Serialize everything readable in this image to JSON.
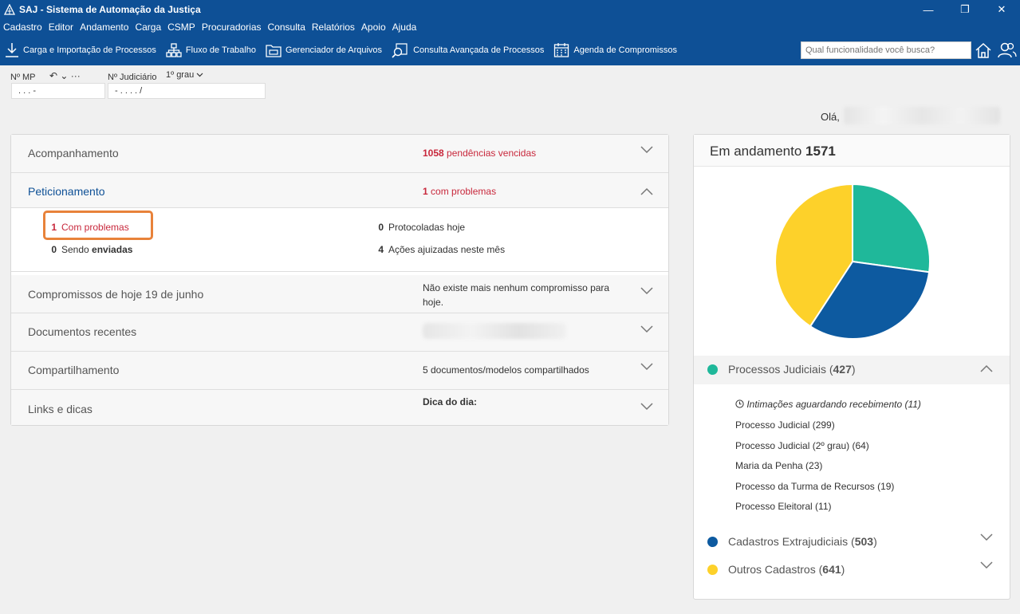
{
  "window": {
    "title": "SAJ - Sistema de Automação da Justiça",
    "controls": [
      "—",
      "❐",
      "✕"
    ]
  },
  "menu": [
    "Cadastro",
    "Editor",
    "Andamento",
    "Carga",
    "CSMP",
    "Procuradorias",
    "Consulta",
    "Relatórios",
    "Apoio",
    "Ajuda"
  ],
  "toolbar": {
    "items": [
      {
        "label": "Carga e Importação de Processos",
        "icon": "download-icon"
      },
      {
        "label": "Fluxo de Trabalho",
        "icon": "workflow-icon"
      },
      {
        "label": "Gerenciador de Arquivos",
        "icon": "file-manager-icon"
      },
      {
        "label": "Consulta Avançada de Processos",
        "icon": "advanced-search-icon"
      },
      {
        "label": "Agenda de Compromissos",
        "icon": "calendar-icon"
      }
    ],
    "search_placeholder": "Qual funcionalidade você busca?"
  },
  "process_search": {
    "mp_label": "Nº MP",
    "mp_controls": "↶ ⌄ ···",
    "mp_value": ". . . -",
    "judiciario_label": "Nº Judiciário",
    "grau_label": "1º grau",
    "judiciario_value": "- . . . . /"
  },
  "greeting": "Olá,",
  "sections": {
    "acompanhamento": {
      "title": "Acompanhamento",
      "count": "1058",
      "info": "pendências vencidas"
    },
    "peticionamento": {
      "title": "Peticionamento",
      "count": "1",
      "info": "com problemas",
      "stats": {
        "com_problemas": {
          "n": "1",
          "label": "Com problemas"
        },
        "sendo_enviadas": {
          "n": "0",
          "label": "Sendo",
          "label_bold": "enviadas"
        },
        "protocoladas": {
          "n": "0",
          "label": "Protocoladas hoje"
        },
        "acoes": {
          "n": "4",
          "label": "Ações ajuizadas neste mês"
        }
      }
    },
    "compromissos": {
      "title": "Compromissos de hoje 19 de junho",
      "info": "Não existe mais nenhum compromisso para hoje."
    },
    "documentos": {
      "title": "Documentos recentes"
    },
    "compartilhamento": {
      "title": "Compartilhamento",
      "info": "5 documentos/modelos compartilhados"
    },
    "links": {
      "title": "Links e dicas",
      "info": "Dica do dia:"
    }
  },
  "right_panel": {
    "title": "Em andamento",
    "total": "1571",
    "groups": [
      {
        "label": "Processos Judiciais",
        "count": "427",
        "color": "#1fb89a"
      },
      {
        "label": "Cadastros Extrajudiciais",
        "count": "503",
        "color": "#0d5aa0"
      },
      {
        "label": "Outros Cadastros",
        "count": "641",
        "color": "#fdd12a"
      }
    ],
    "sub_items": [
      "Intimações aguardando recebimento (11)",
      "Processo Judicial (299)",
      "Processo Judicial (2º grau) (64)",
      "Maria da Penha (23)",
      "Processo da Turma de Recursos (19)",
      "Processo Eleitoral (11)"
    ]
  },
  "chart_data": {
    "type": "pie",
    "categories": [
      "Processos Judiciais",
      "Cadastros Extrajudiciais",
      "Outros Cadastros"
    ],
    "values": [
      427,
      503,
      641
    ],
    "colors": [
      "#1fb89a",
      "#0d5aa0",
      "#fdd12a"
    ]
  }
}
